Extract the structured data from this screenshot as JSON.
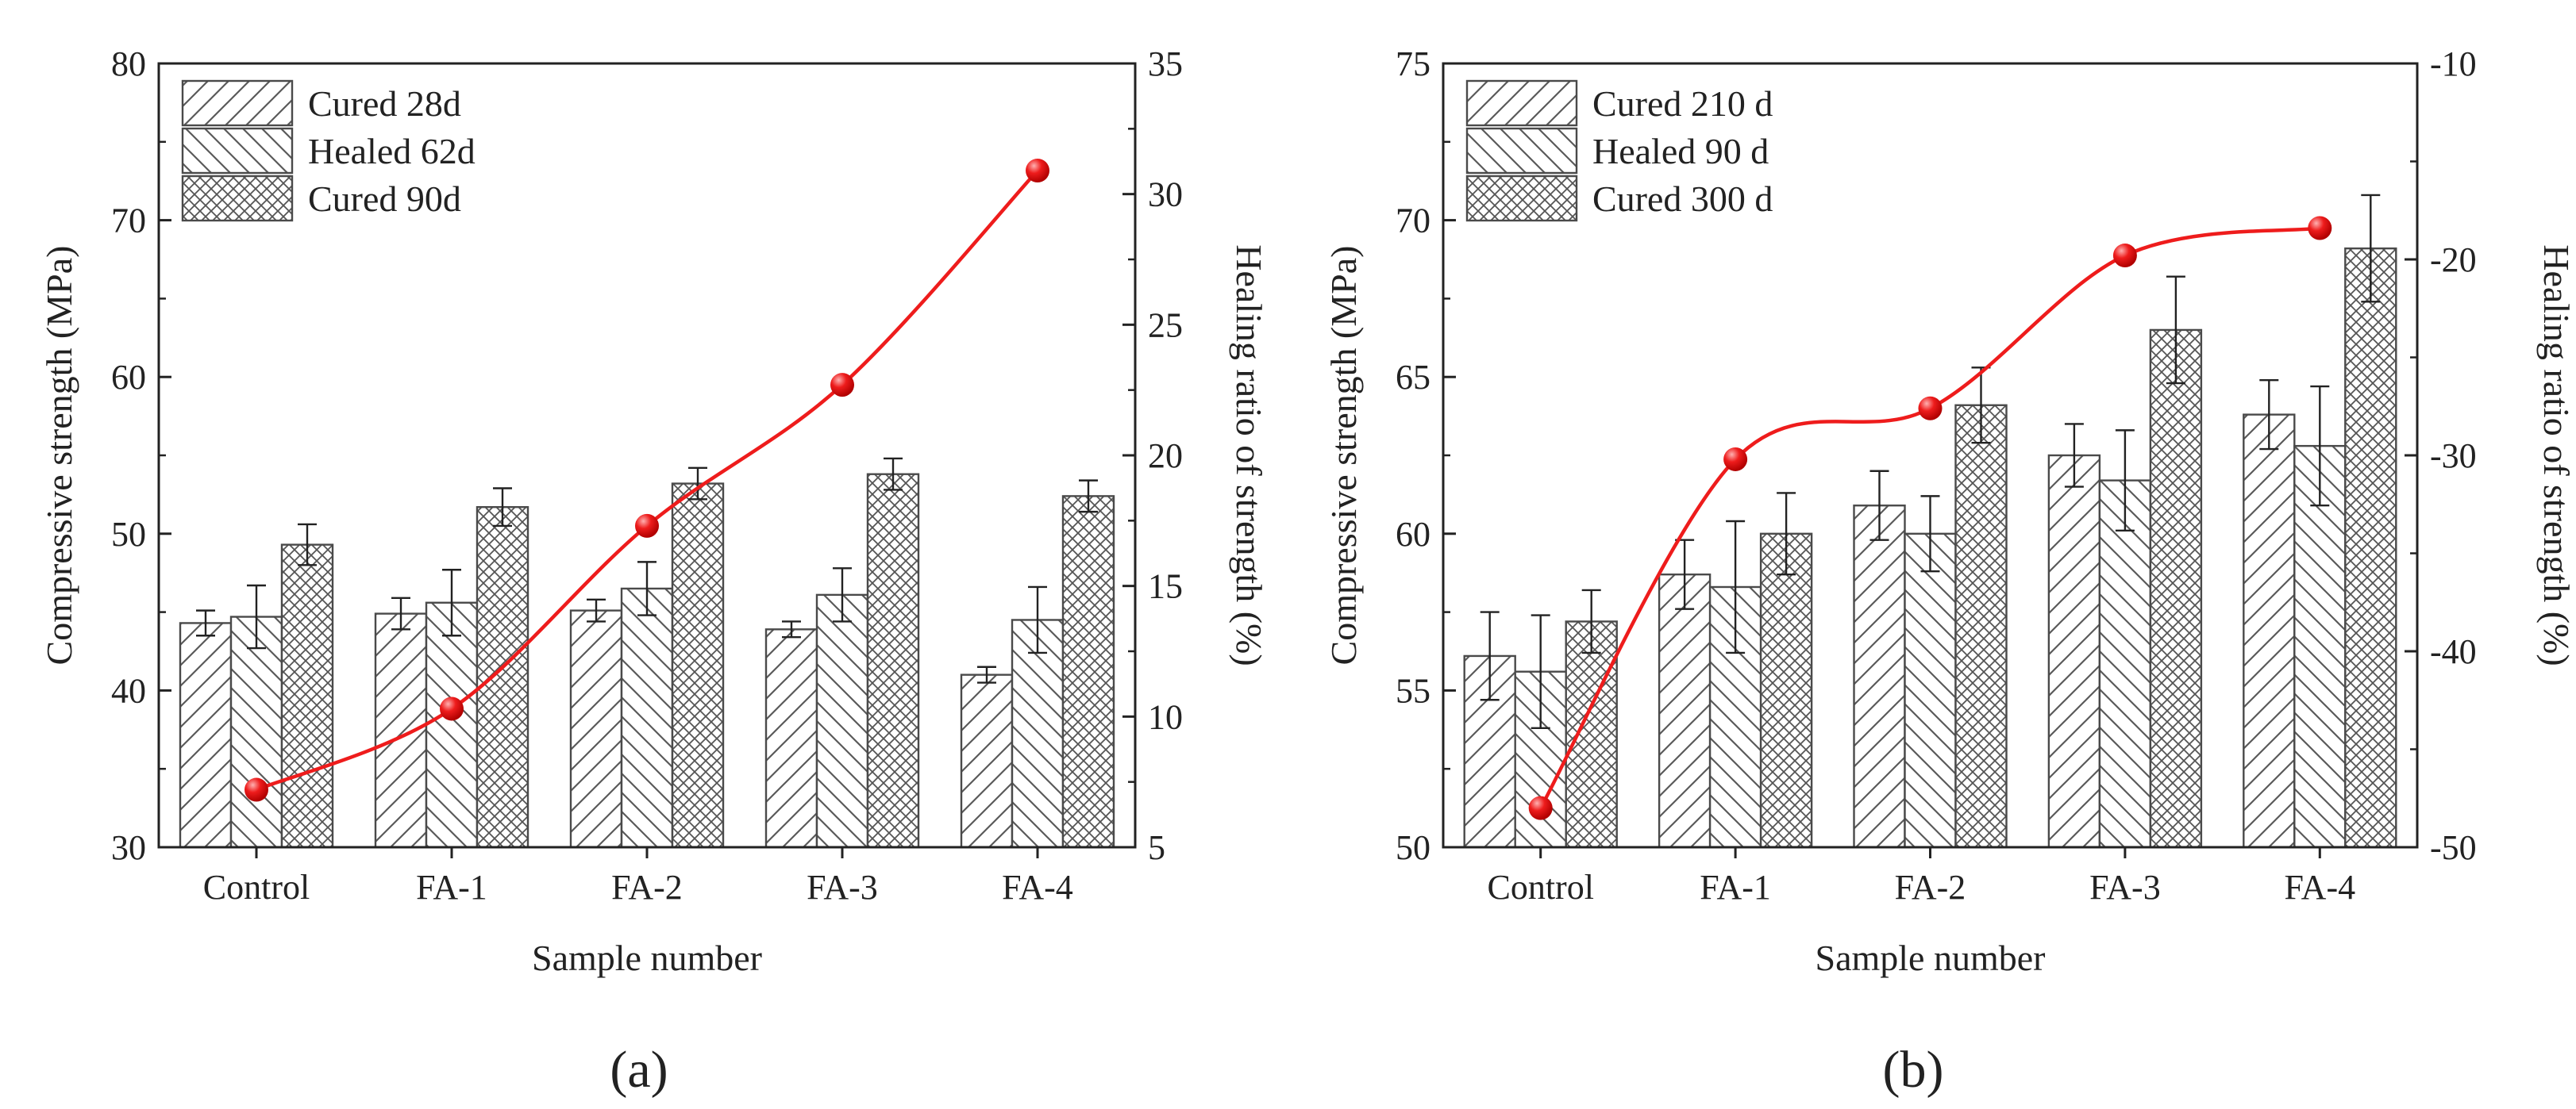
{
  "figure": {
    "panel_labels": [
      "(a)",
      "(b)"
    ]
  },
  "colors": {
    "axis": "#222222",
    "bar_edge": "#4a4a4a",
    "hatch": "#5a5a5a",
    "line": "#ee1c1c",
    "marker": "#ee1c1c"
  },
  "chart_data": [
    {
      "type": "bar",
      "panel_label": "(a)",
      "categories": [
        "Control",
        "FA-1",
        "FA-2",
        "FA-3",
        "FA-4"
      ],
      "xlabel": "Sample number",
      "ylabel": "Compressive strength (MPa)",
      "ylim": [
        30,
        80
      ],
      "yticks": [
        30,
        40,
        50,
        60,
        70,
        80
      ],
      "y2label": "Healing ratio of strength (%)",
      "y2lim": [
        5,
        35
      ],
      "y2ticks": [
        5,
        10,
        15,
        20,
        25,
        30,
        35
      ],
      "series": [
        {
          "name": "Cured 28d",
          "hatch": "forward",
          "values": [
            44.3,
            44.9,
            45.1,
            43.9,
            41.0
          ],
          "errors": [
            0.8,
            1.0,
            0.7,
            0.5,
            0.5
          ]
        },
        {
          "name": "Healed 62d",
          "hatch": "back",
          "values": [
            44.7,
            45.6,
            46.5,
            46.1,
            44.5
          ],
          "errors": [
            2.0,
            2.1,
            1.7,
            1.7,
            2.1
          ]
        },
        {
          "name": "Cured 90d",
          "hatch": "cross",
          "values": [
            49.3,
            51.7,
            53.2,
            53.8,
            52.4
          ],
          "errors": [
            1.3,
            1.2,
            1.0,
            1.0,
            1.0
          ]
        }
      ],
      "line_series": {
        "name": "Healing ratio of strength",
        "axis": "right",
        "values": [
          7.2,
          10.3,
          17.3,
          22.7,
          30.9
        ]
      }
    },
    {
      "type": "bar",
      "panel_label": "(b)",
      "categories": [
        "Control",
        "FA-1",
        "FA-2",
        "FA-3",
        "FA-4"
      ],
      "xlabel": "Sample number",
      "ylabel": "Compressive strength (MPa)",
      "ylim": [
        50,
        75
      ],
      "yticks": [
        50,
        55,
        60,
        65,
        70,
        75
      ],
      "y2label": "Healing ratio of strength (%)",
      "y2lim": [
        -50,
        -10
      ],
      "y2ticks": [
        -50,
        -40,
        -30,
        -20,
        -10
      ],
      "series": [
        {
          "name": "Cured 210 d",
          "hatch": "forward",
          "values": [
            56.1,
            58.7,
            60.9,
            62.5,
            63.8
          ],
          "errors": [
            1.4,
            1.1,
            1.1,
            1.0,
            1.1
          ]
        },
        {
          "name": "Healed 90 d",
          "hatch": "back",
          "values": [
            55.6,
            58.3,
            60.0,
            61.7,
            62.8
          ],
          "errors": [
            1.8,
            2.1,
            1.2,
            1.6,
            1.9
          ]
        },
        {
          "name": "Cured 300 d",
          "hatch": "cross",
          "values": [
            57.2,
            60.0,
            64.1,
            66.5,
            69.1
          ],
          "errors": [
            1.0,
            1.3,
            1.2,
            1.7,
            1.7
          ]
        }
      ],
      "line_series": {
        "name": "Healing ratio of strength",
        "axis": "right",
        "values": [
          -48.0,
          -30.2,
          -27.6,
          -19.8,
          -18.4
        ]
      }
    }
  ]
}
